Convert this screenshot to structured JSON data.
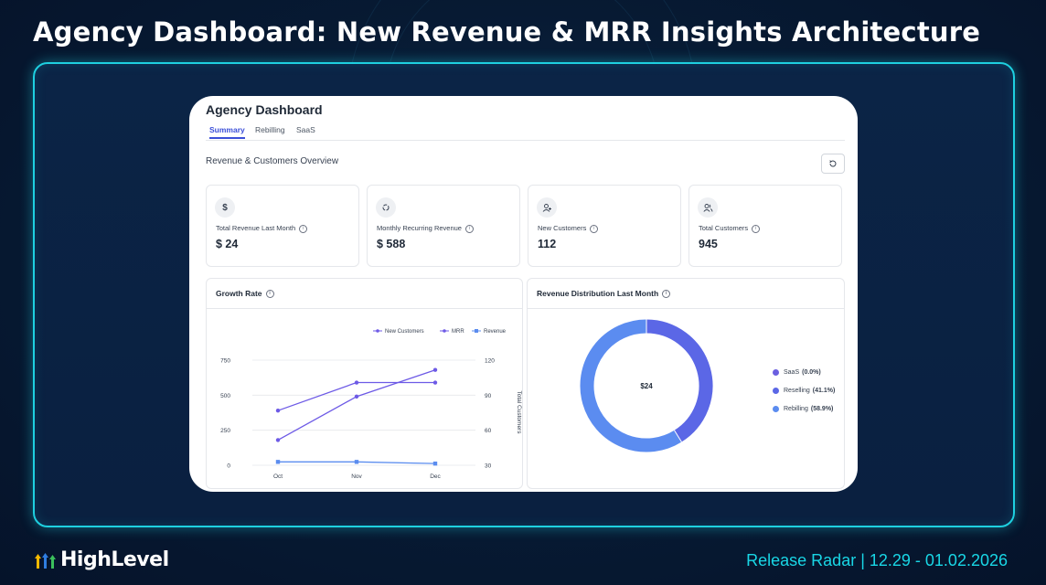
{
  "headline": "Agency Dashboard: New Revenue & MRR Insights Architecture",
  "app": {
    "title": "Agency Dashboard",
    "tabs": [
      {
        "label": "Summary",
        "active": true
      },
      {
        "label": "Rebilling",
        "active": false
      },
      {
        "label": "SaaS",
        "active": false
      }
    ],
    "section_title": "Revenue & Customers Overview"
  },
  "stats": [
    {
      "icon": "dollar-icon",
      "label": "Total Revenue Last Month",
      "value": "$ 24"
    },
    {
      "icon": "recurring-icon",
      "label": "Monthly Recurring Revenue",
      "value": "$ 588"
    },
    {
      "icon": "user-plus-icon",
      "label": "New Customers",
      "value": "112"
    },
    {
      "icon": "users-icon",
      "label": "Total Customers",
      "value": "945"
    }
  ],
  "growth_panel": {
    "title": "Growth Rate"
  },
  "distribution_panel": {
    "title": "Revenue Distribution Last Month",
    "center_label": "$24"
  },
  "chart_data": [
    {
      "type": "line",
      "title": "Growth Rate",
      "categories": [
        "Oct",
        "Nov",
        "Dec"
      ],
      "left_axis": {
        "ticks": [
          0,
          250,
          500,
          750
        ],
        "range": [
          0,
          750
        ]
      },
      "right_axis": {
        "label": "Total Customers",
        "ticks": [
          30,
          60,
          90,
          120
        ],
        "range": [
          30,
          120
        ]
      },
      "series": [
        {
          "name": "New Customers",
          "axis": "left",
          "values": [
            390,
            590,
            590
          ],
          "color": "#6d5ae6"
        },
        {
          "name": "MRR",
          "axis": "left",
          "values": [
            180,
            490,
            680
          ],
          "color": "#6d5ae6"
        },
        {
          "name": "Revenue",
          "axis": "left",
          "values": [
            24,
            24,
            12
          ],
          "color": "#5b8def"
        }
      ]
    },
    {
      "type": "pie",
      "title": "Revenue Distribution Last Month",
      "slices": [
        {
          "label": "SaaS",
          "pct_label": "(0.0%)",
          "value": 0.0,
          "color": "#6b5fe0"
        },
        {
          "label": "Reselling",
          "pct_label": "(41.1%)",
          "value": 41.1,
          "color": "#5b67e6"
        },
        {
          "label": "Rebilling",
          "pct_label": "(58.9%)",
          "value": 58.9,
          "color": "#5b8cf0"
        }
      ]
    }
  ],
  "footer": {
    "brand": "HighLevel",
    "release": "Release Radar | 12.29 - 01.02.2026"
  }
}
